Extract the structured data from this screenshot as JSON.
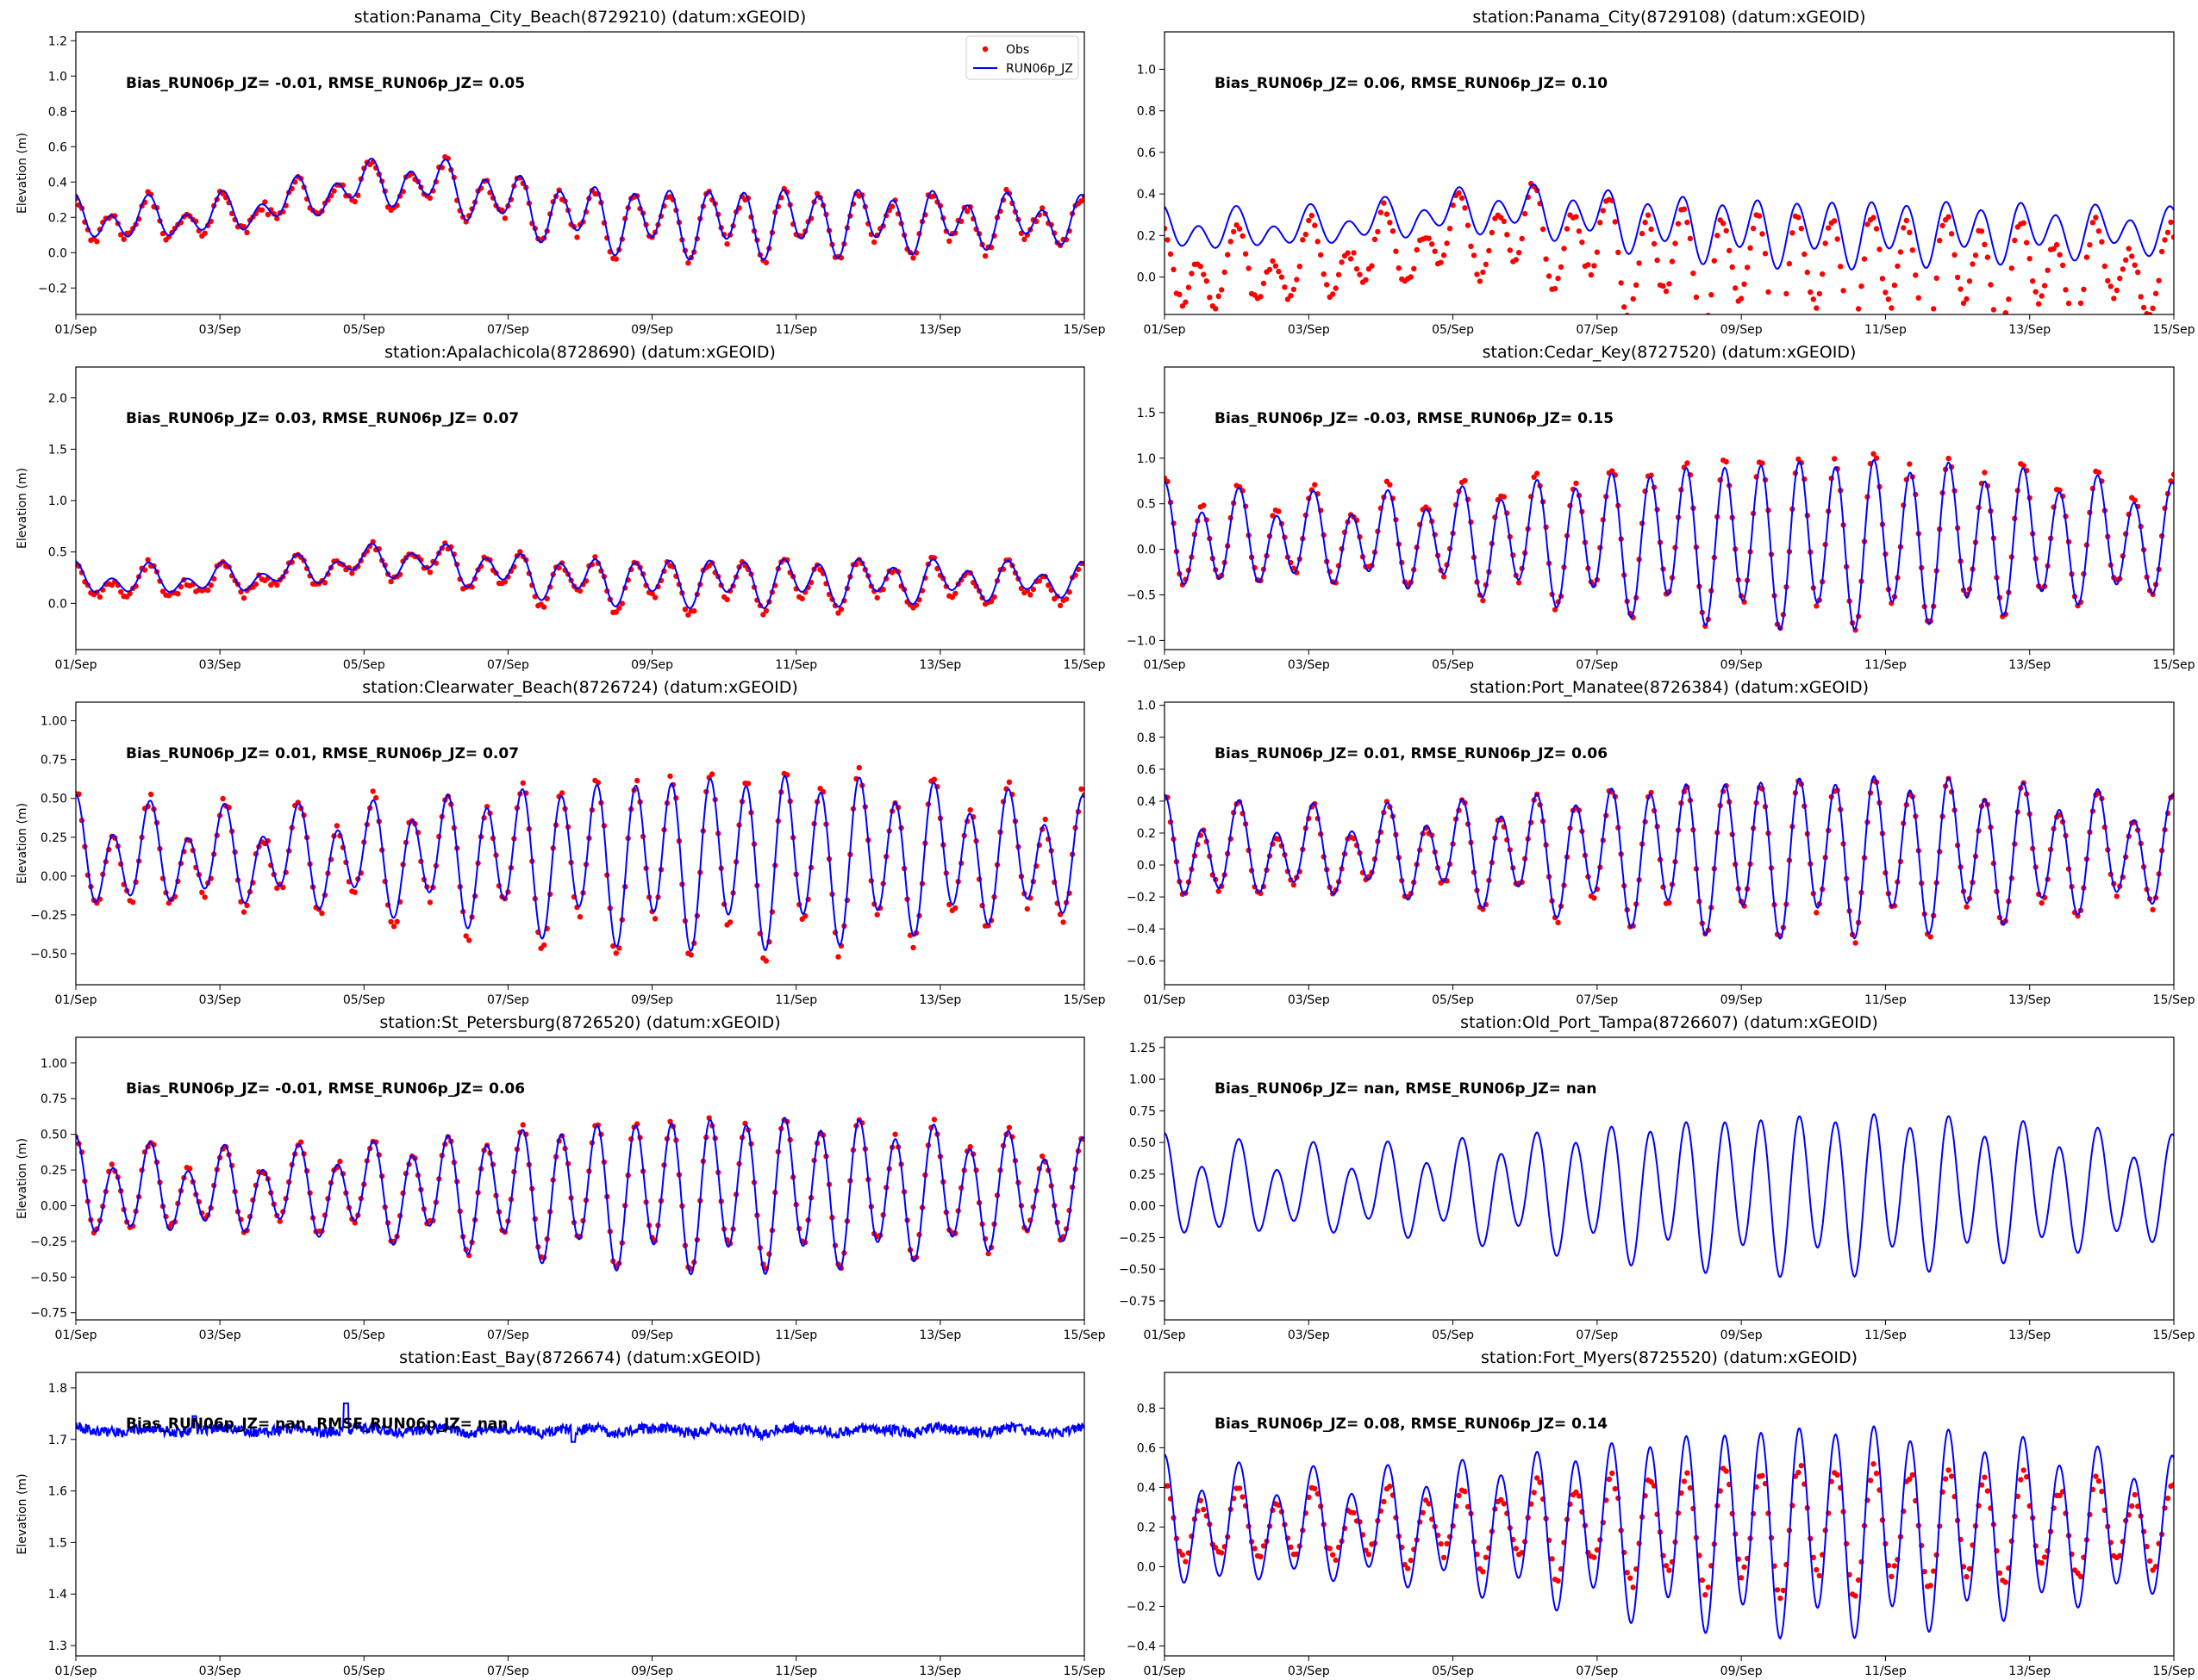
{
  "figure": {
    "x_tick_labels": [
      "01/Sep",
      "03/Sep",
      "05/Sep",
      "07/Sep",
      "09/Sep",
      "11/Sep",
      "13/Sep",
      "15/Sep"
    ],
    "ylabel": "Elevation (m)",
    "legend": {
      "items": [
        "Obs",
        "RUN06p_JZ"
      ],
      "placement": "upper-right of first panel"
    },
    "colors": {
      "obs": "#ff0000",
      "model": "#0000ff"
    }
  },
  "chart_data": [
    {
      "type": "line",
      "title": "station:Panama_City_Beach(8729210) (datum:xGEOID)",
      "stats": "Bias_RUN06p_JZ= -0.01, RMSE_RUN06p_JZ=  0.05",
      "ylabel": "Elevation (m)",
      "ylim": [
        -0.35,
        1.25
      ],
      "yticks": [
        -0.2,
        0.0,
        0.2,
        0.4,
        0.6,
        0.8,
        1.0,
        1.2
      ],
      "ytick_labels": [
        "−0.2",
        "0.0",
        "0.2",
        "0.4",
        "0.6",
        "0.8",
        "1.0",
        "1.2"
      ],
      "xlim": [
        0,
        14
      ],
      "x_unit": "days since 01/Sep",
      "has_obs": true,
      "legend": true,
      "row": 0,
      "col": 0,
      "model": {
        "mean": 0.18,
        "a1": 0.06,
        "a2": 0.12,
        "ph2": 0.3,
        "env_amp": 0.22,
        "env_center": 4.5,
        "env_width": 1.8,
        "noise": 0
      },
      "obs": {
        "scale": 1.0,
        "offset": -0.01,
        "jitter": 0.03
      }
    },
    {
      "type": "line",
      "title": "station:Panama_City(8729108) (datum:xGEOID)",
      "stats": "Bias_RUN06p_JZ=  0.06, RMSE_RUN06p_JZ=  0.10",
      "ylabel": "",
      "ylim": [
        -0.18,
        1.18
      ],
      "yticks": [
        0.0,
        0.2,
        0.4,
        0.6,
        0.8,
        1.0
      ],
      "ytick_labels": [
        "0.0",
        "0.2",
        "0.4",
        "0.6",
        "0.8",
        "1.0"
      ],
      "xlim": [
        0,
        14
      ],
      "x_unit": "days since 01/Sep",
      "has_obs": true,
      "legend": false,
      "row": 0,
      "col": 1,
      "model": {
        "mean": 0.22,
        "a1": 0.05,
        "a2": 0.1,
        "ph2": 0.5,
        "env_amp": 0.1,
        "env_center": 4.7,
        "env_width": 2.0,
        "noise": 0
      },
      "obs": {
        "scale": 1.9,
        "offset": -0.2,
        "jitter": 0.03
      }
    },
    {
      "type": "line",
      "title": "station:Apalachicola(8728690) (datum:xGEOID)",
      "stats": "Bias_RUN06p_JZ=  0.03, RMSE_RUN06p_JZ=  0.07",
      "ylabel": "Elevation (m)",
      "ylim": [
        -0.45,
        2.3
      ],
      "yticks": [
        0.0,
        0.5,
        1.0,
        1.5,
        2.0
      ],
      "ytick_labels": [
        "0.0",
        "0.5",
        "1.0",
        "1.5",
        "2.0"
      ],
      "xlim": [
        0,
        14
      ],
      "x_unit": "days since 01/Sep",
      "has_obs": true,
      "legend": false,
      "row": 1,
      "col": 0,
      "model": {
        "mean": 0.22,
        "a1": 0.08,
        "a2": 0.14,
        "ph2": 0.2,
        "env_amp": 0.2,
        "env_center": 4.5,
        "env_width": 1.6,
        "noise": 0
      },
      "obs": {
        "scale": 1.1,
        "offset": -0.03,
        "jitter": 0.04
      }
    },
    {
      "type": "line",
      "title": "station:Cedar_Key(8727520) (datum:xGEOID)",
      "stats": "Bias_RUN06p_JZ= -0.03, RMSE_RUN06p_JZ=  0.15",
      "ylabel": "",
      "ylim": [
        -1.1,
        2.0
      ],
      "yticks": [
        -1.0,
        -0.5,
        0.0,
        0.5,
        1.0,
        1.5
      ],
      "ytick_labels": [
        "−1.0",
        "−0.5",
        "0.0",
        "0.5",
        "1.0",
        "1.5"
      ],
      "xlim": [
        0,
        14
      ],
      "x_unit": "days since 01/Sep",
      "has_obs": true,
      "legend": false,
      "row": 1,
      "col": 1,
      "model": {
        "mean": 0.1,
        "a1": 0.15,
        "a2": 0.62,
        "ph2": 0.0,
        "env_amp": 0,
        "env_center": 8,
        "env_width": 2,
        "noise": 0
      },
      "obs": {
        "scale": 1.05,
        "offset": 0.03,
        "jitter": 0.05
      }
    },
    {
      "type": "line",
      "title": "station:Clearwater_Beach(8726724) (datum:xGEOID)",
      "stats": "Bias_RUN06p_JZ=  0.01, RMSE_RUN06p_JZ=  0.07",
      "ylabel": "Elevation (m)",
      "ylim": [
        -0.7,
        1.12
      ],
      "yticks": [
        -0.5,
        -0.25,
        0.0,
        0.25,
        0.5,
        0.75,
        1.0
      ],
      "ytick_labels": [
        "−0.50",
        "−0.25",
        "0.00",
        "0.25",
        "0.50",
        "0.75",
        "1.00"
      ],
      "xlim": [
        0,
        14
      ],
      "x_unit": "days since 01/Sep",
      "has_obs": true,
      "legend": false,
      "row": 2,
      "col": 0,
      "model": {
        "mean": 0.12,
        "a1": 0.12,
        "a2": 0.36,
        "ph2": 0.0,
        "env_amp": 0,
        "env_center": 8,
        "env_width": 2,
        "noise": 0
      },
      "obs": {
        "scale": 1.08,
        "offset": -0.01,
        "jitter": 0.04
      }
    },
    {
      "type": "line",
      "title": "station:Port_Manatee(8726384) (datum:xGEOID)",
      "stats": "Bias_RUN06p_JZ=  0.01, RMSE_RUN06p_JZ=  0.06",
      "ylabel": "",
      "ylim": [
        -0.75,
        1.02
      ],
      "yticks": [
        -0.6,
        -0.4,
        -0.2,
        0.0,
        0.2,
        0.4,
        0.6,
        0.8,
        1.0
      ],
      "ytick_labels": [
        "−0.6",
        "−0.4",
        "−0.2",
        "0.0",
        "0.2",
        "0.4",
        "0.6",
        "0.8",
        "1.0"
      ],
      "xlim": [
        0,
        14
      ],
      "x_unit": "days since 01/Sep",
      "has_obs": true,
      "legend": false,
      "row": 2,
      "col": 1,
      "model": {
        "mean": 0.08,
        "a1": 0.1,
        "a2": 0.33,
        "ph2": 0.0,
        "env_amp": 0,
        "env_center": 8,
        "env_width": 2,
        "noise": 0
      },
      "obs": {
        "scale": 1.0,
        "offset": -0.01,
        "jitter": 0.03
      }
    },
    {
      "type": "line",
      "title": "station:St_Petersburg(8726520) (datum:xGEOID)",
      "stats": "Bias_RUN06p_JZ= -0.01, RMSE_RUN06p_JZ=  0.06",
      "ylabel": "Elevation (m)",
      "ylim": [
        -0.8,
        1.18
      ],
      "yticks": [
        -0.75,
        -0.5,
        -0.25,
        0.0,
        0.25,
        0.5,
        0.75,
        1.0
      ],
      "ytick_labels": [
        "−0.75",
        "−0.50",
        "−0.25",
        "0.00",
        "0.25",
        "0.50",
        "0.75",
        "1.00"
      ],
      "xlim": [
        0,
        14
      ],
      "x_unit": "days since 01/Sep",
      "has_obs": true,
      "legend": false,
      "row": 3,
      "col": 0,
      "model": {
        "mean": 0.1,
        "a1": 0.1,
        "a2": 0.36,
        "ph2": 0.0,
        "env_amp": 0,
        "env_center": 8,
        "env_width": 2,
        "noise": 0
      },
      "obs": {
        "scale": 1.0,
        "offset": 0.01,
        "jitter": 0.03
      }
    },
    {
      "type": "line",
      "title": "station:Old_Port_Tampa(8726607) (datum:xGEOID)",
      "stats": "Bias_RUN06p_JZ=   nan, RMSE_RUN06p_JZ=   nan",
      "ylabel": "",
      "ylim": [
        -0.9,
        1.33
      ],
      "yticks": [
        -0.75,
        -0.5,
        -0.25,
        0.0,
        0.25,
        0.5,
        0.75,
        1.0,
        1.25
      ],
      "ytick_labels": [
        "−0.75",
        "−0.50",
        "−0.25",
        "0.00",
        "0.25",
        "0.50",
        "0.75",
        "1.00",
        "1.25"
      ],
      "xlim": [
        0,
        14
      ],
      "x_unit": "days since 01/Sep",
      "has_obs": false,
      "legend": false,
      "row": 3,
      "col": 1,
      "model": {
        "mean": 0.12,
        "a1": 0.12,
        "a2": 0.42,
        "ph2": 0.0,
        "env_amp": 0,
        "env_center": 8,
        "env_width": 2,
        "noise": 0
      },
      "obs": null
    },
    {
      "type": "line",
      "title": "station:East_Bay(8726674) (datum:xGEOID)",
      "stats": "Bias_RUN06p_JZ=   nan, RMSE_RUN06p_JZ=   nan",
      "ylabel": "Elevation (m)",
      "ylim": [
        1.28,
        1.83
      ],
      "yticks": [
        1.3,
        1.4,
        1.5,
        1.6,
        1.7,
        1.8
      ],
      "ytick_labels": [
        "1.3",
        "1.4",
        "1.5",
        "1.6",
        "1.7",
        "1.8"
      ],
      "xlim": [
        0,
        14
      ],
      "x_unit": "days since 01/Sep",
      "has_obs": false,
      "legend": false,
      "row": 4,
      "col": 0,
      "model": {
        "mean": 1.718,
        "a1": 0.004,
        "a2": 0.002,
        "ph2": 0.0,
        "env_amp": 0,
        "env_center": 8,
        "env_width": 2,
        "noise": 0.01,
        "spikes": [
          [
            1.65,
            1.745
          ],
          [
            3.75,
            1.77
          ],
          [
            6.9,
            1.695
          ]
        ]
      },
      "obs": null
    },
    {
      "type": "line",
      "title": "station:Fort_Myers(8725520) (datum:xGEOID)",
      "stats": "Bias_RUN06p_JZ=  0.08, RMSE_RUN06p_JZ=  0.14",
      "ylabel": "",
      "ylim": [
        -0.45,
        0.98
      ],
      "yticks": [
        -0.4,
        -0.2,
        0.0,
        0.2,
        0.4,
        0.6,
        0.8
      ],
      "ytick_labels": [
        "−0.4",
        "−0.2",
        "0.0",
        "0.2",
        "0.4",
        "0.6",
        "0.8"
      ],
      "xlim": [
        0,
        14
      ],
      "x_unit": "days since 01/Sep",
      "has_obs": true,
      "legend": false,
      "row": 4,
      "col": 1,
      "model": {
        "mean": 0.2,
        "a1": 0.08,
        "a2": 0.36,
        "ph2": 0.0,
        "env_amp": 0,
        "env_center": 8,
        "env_width": 2,
        "noise": 0
      },
      "obs": {
        "scale": 0.6,
        "offset": 0.0,
        "jitter": 0.03
      }
    }
  ]
}
